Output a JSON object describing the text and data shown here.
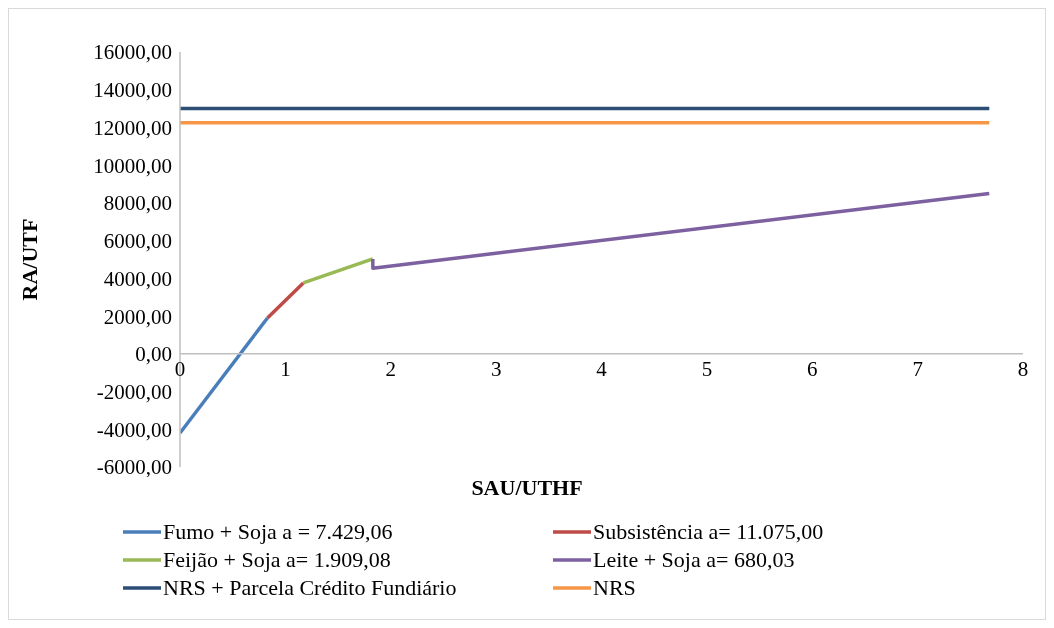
{
  "chart_data": {
    "type": "line",
    "xlabel": "SAU/UTHF",
    "ylabel": "RA/UTF",
    "xlim": [
      0,
      8
    ],
    "xticks": [
      0,
      1,
      2,
      3,
      4,
      5,
      6,
      7,
      8
    ],
    "ylim": [
      -6000,
      16000
    ],
    "yticks": [
      {
        "value": -6000,
        "label": "-6000,00"
      },
      {
        "value": -4000,
        "label": "-4000,00"
      },
      {
        "value": -2000,
        "label": "-2000,00"
      },
      {
        "value": 0,
        "label": "0,00"
      },
      {
        "value": 2000,
        "label": "2000,00"
      },
      {
        "value": 4000,
        "label": "4000,00"
      },
      {
        "value": 6000,
        "label": "6000,00"
      },
      {
        "value": 8000,
        "label": "8000,00"
      },
      {
        "value": 10000,
        "label": "10000,00"
      },
      {
        "value": 12000,
        "label": "12000,00"
      },
      {
        "value": 14000,
        "label": "14000,00"
      },
      {
        "value": 16000,
        "label": "16000,00"
      }
    ],
    "grid": false,
    "legend": "bottom",
    "marker": "none",
    "line_style": "solid",
    "series": [
      {
        "name": "Fumo + Soja a = 7.429,06",
        "color": "#4a7ebb",
        "x": [
          0,
          0.83
        ],
        "values": [
          -4200,
          1900
        ]
      },
      {
        "name": "Subsistência a= 11.075,00",
        "color": "#be4b48",
        "x": [
          0.83,
          1.17
        ],
        "values": [
          1900,
          3760
        ]
      },
      {
        "name": "Feijão + Soja a= 1.909,08",
        "color": "#98b954",
        "x": [
          1.17,
          1.83
        ],
        "values": [
          3760,
          5030
        ]
      },
      {
        "name": "Leite + Soja a= 680,03",
        "color": "#7d60a0",
        "x": [
          1.83,
          1.83,
          7.68
        ],
        "values": [
          5030,
          4540,
          8500
        ]
      },
      {
        "name": "NRS + Parcela Crédito Fundiário",
        "color": "#2c4d75",
        "x": [
          0,
          7.68
        ],
        "values": [
          13000,
          13000
        ]
      },
      {
        "name": "NRS",
        "color": "#f79646",
        "x": [
          0,
          7.68
        ],
        "values": [
          12250,
          12250
        ]
      }
    ]
  }
}
